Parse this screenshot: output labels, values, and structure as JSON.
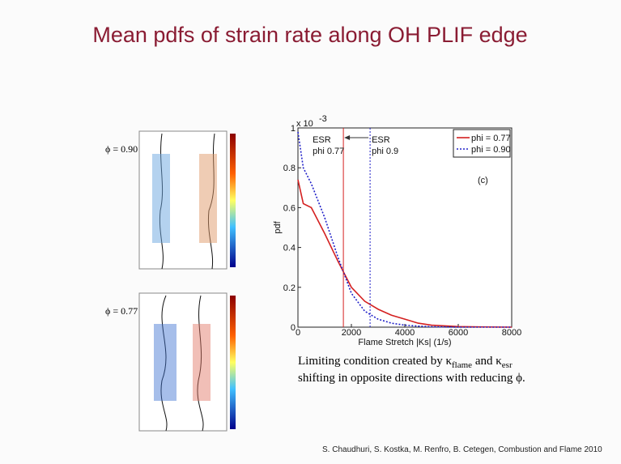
{
  "slide": {
    "title": "Mean pdfs of strain rate along OH PLIF edge",
    "phi_labels": [
      "ϕ = 0.90",
      "ϕ = 0.77"
    ],
    "caption": [
      "Limiting condition created by κ",
      "flame",
      " and κ",
      "esr",
      "shifting in opposite directions with reducing ϕ."
    ],
    "citation": "S. Chaudhuri, S. Kostka, M. Renfro, B. Cetegen, Combustion and Flame 2010"
  },
  "chart_data": {
    "type": "line",
    "xlabel": "Flame Stretch |Ks| (1/s)",
    "ylabel": "pdf",
    "y_multiplier": "x 10",
    "y_multiplier_exp": "-3",
    "panel_label": "(c)",
    "x": [
      0,
      200,
      500,
      1000,
      1500,
      2000,
      2500,
      3000,
      3500,
      4000,
      4500,
      5000,
      6000,
      7000,
      8000
    ],
    "series": [
      {
        "name": "phi = 0.77",
        "color": "#d42020",
        "dash": "solid",
        "values": [
          0.74,
          0.62,
          0.6,
          0.47,
          0.33,
          0.2,
          0.13,
          0.09,
          0.06,
          0.04,
          0.02,
          0.01,
          0.003,
          0.001,
          0
        ]
      },
      {
        "name": "phi = 0.90",
        "color": "#2020c8",
        "dash": "dotted",
        "values": [
          0.98,
          0.8,
          0.72,
          0.55,
          0.35,
          0.17,
          0.08,
          0.04,
          0.02,
          0.01,
          0.005,
          0.002,
          0,
          0,
          0
        ]
      }
    ],
    "annotations": [
      {
        "x": 1700,
        "lines": [
          "ESR",
          "phi 0.77"
        ],
        "color": "#d42020",
        "dash": "solid"
      },
      {
        "x": 2700,
        "lines": [
          "ESR",
          "phi 0.9"
        ],
        "color": "#2020c8",
        "dash": "dotted"
      }
    ],
    "xlim": [
      0,
      8000
    ],
    "xticks": [
      0,
      2000,
      4000,
      6000,
      8000
    ],
    "ylim": [
      0,
      1
    ],
    "yticks": [
      0,
      0.2,
      0.4,
      0.6,
      0.8,
      1
    ],
    "legend": "upper-right"
  }
}
